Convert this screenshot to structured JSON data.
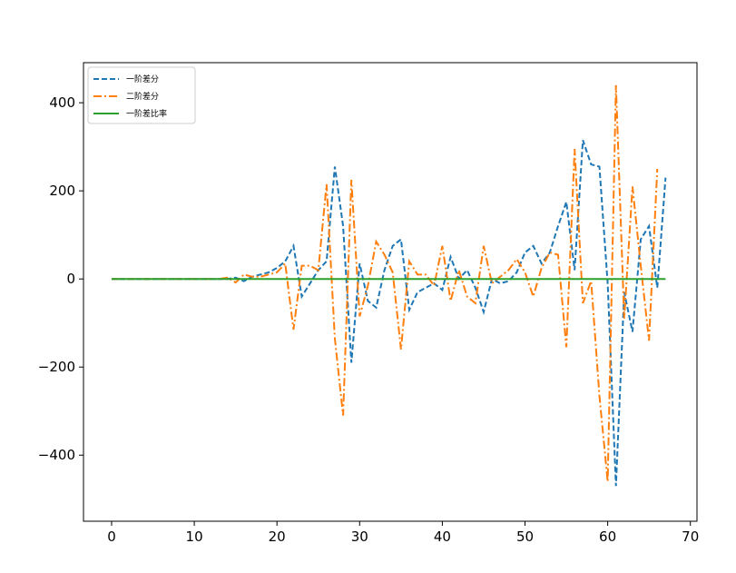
{
  "chart_data": {
    "type": "line",
    "xlim": [
      -3.4,
      70.8
    ],
    "ylim": [
      -550,
      491
    ],
    "xticks": [
      0,
      10,
      20,
      30,
      40,
      50,
      60,
      70
    ],
    "yticks": [
      {
        "value": -400,
        "label": "−400"
      },
      {
        "value": -200,
        "label": "−200"
      },
      0,
      200,
      400
    ],
    "legend": "upper left",
    "series": [
      {
        "name": "一阶差分",
        "color": "#1f77b4",
        "style": "dashed",
        "x": [
          0,
          1,
          2,
          3,
          4,
          5,
          6,
          7,
          8,
          9,
          10,
          11,
          12,
          13,
          14,
          15,
          16,
          17,
          18,
          19,
          20,
          21,
          22,
          23,
          24,
          25,
          26,
          27,
          28,
          29,
          30,
          31,
          32,
          33,
          34,
          35,
          36,
          37,
          38,
          39,
          40,
          41,
          42,
          43,
          44,
          45,
          46,
          47,
          48,
          49,
          50,
          51,
          52,
          53,
          54,
          55,
          56,
          57,
          58,
          59,
          60,
          61,
          62,
          63,
          64,
          65,
          66,
          67
        ],
        "values": [
          0,
          0,
          0,
          0,
          0,
          0,
          0,
          0,
          0,
          0,
          0,
          0,
          0,
          0,
          0,
          3,
          -5,
          5,
          10,
          15,
          25,
          40,
          75,
          -40,
          -10,
          20,
          40,
          255,
          120,
          -190,
          35,
          -50,
          -65,
          20,
          75,
          90,
          -70,
          -30,
          -20,
          -10,
          -25,
          50,
          0,
          20,
          -20,
          -75,
          0,
          -10,
          -5,
          15,
          60,
          75,
          35,
          60,
          120,
          175,
          20,
          315,
          260,
          255,
          -10,
          -470,
          -30,
          -120,
          90,
          120,
          -20,
          230
        ]
      },
      {
        "name": "二阶差分",
        "color": "#ff7f0e",
        "style": "dashdot",
        "x": [
          0,
          1,
          2,
          3,
          4,
          5,
          6,
          7,
          8,
          9,
          10,
          11,
          12,
          13,
          14,
          15,
          16,
          17,
          18,
          19,
          20,
          21,
          22,
          23,
          24,
          25,
          26,
          27,
          28,
          29,
          30,
          31,
          32,
          33,
          34,
          35,
          36,
          37,
          38,
          39,
          40,
          41,
          42,
          43,
          44,
          45,
          46,
          47,
          48,
          49,
          50,
          51,
          52,
          53,
          54,
          55,
          56,
          57,
          58,
          59,
          60,
          61,
          62,
          63,
          64,
          65,
          66
        ],
        "values": [
          0,
          0,
          0,
          0,
          0,
          0,
          0,
          0,
          0,
          0,
          0,
          0,
          0,
          0,
          3,
          -8,
          10,
          5,
          5,
          10,
          15,
          35,
          -115,
          30,
          30,
          20,
          215,
          -135,
          -310,
          225,
          -85,
          -15,
          85,
          55,
          15,
          -160,
          40,
          10,
          10,
          -15,
          75,
          -50,
          20,
          -40,
          -55,
          75,
          -10,
          5,
          20,
          45,
          15,
          -40,
          25,
          60,
          55,
          -155,
          295,
          -55,
          -5,
          -265,
          -460,
          440,
          -90,
          210,
          30,
          -140,
          250
        ]
      },
      {
        "name": "一阶差比率",
        "color": "#2ca02c",
        "style": "solid",
        "x": [
          0,
          1,
          2,
          3,
          4,
          5,
          6,
          7,
          8,
          9,
          10,
          11,
          12,
          13,
          14,
          15,
          16,
          17,
          18,
          19,
          20,
          21,
          22,
          23,
          24,
          25,
          26,
          27,
          28,
          29,
          30,
          31,
          32,
          33,
          34,
          35,
          36,
          37,
          38,
          39,
          40,
          41,
          42,
          43,
          44,
          45,
          46,
          47,
          48,
          49,
          50,
          51,
          52,
          53,
          54,
          55,
          56,
          57,
          58,
          59,
          60,
          61,
          62,
          63,
          64,
          65,
          66,
          67
        ],
        "values": [
          0,
          0,
          0,
          0,
          0,
          0,
          0,
          0,
          0,
          0,
          0,
          0,
          0,
          0,
          0,
          0,
          0,
          0,
          0,
          0,
          0,
          0,
          0,
          0,
          0,
          0,
          0,
          0,
          0,
          0,
          0,
          0,
          0,
          0,
          0,
          0,
          0,
          0,
          0,
          0,
          0,
          0,
          0,
          0,
          0,
          0,
          0,
          0,
          0,
          0,
          0,
          0,
          0,
          0,
          0,
          0,
          0,
          0,
          0,
          0,
          0,
          0,
          0,
          0,
          0,
          0,
          0,
          0
        ]
      }
    ]
  }
}
